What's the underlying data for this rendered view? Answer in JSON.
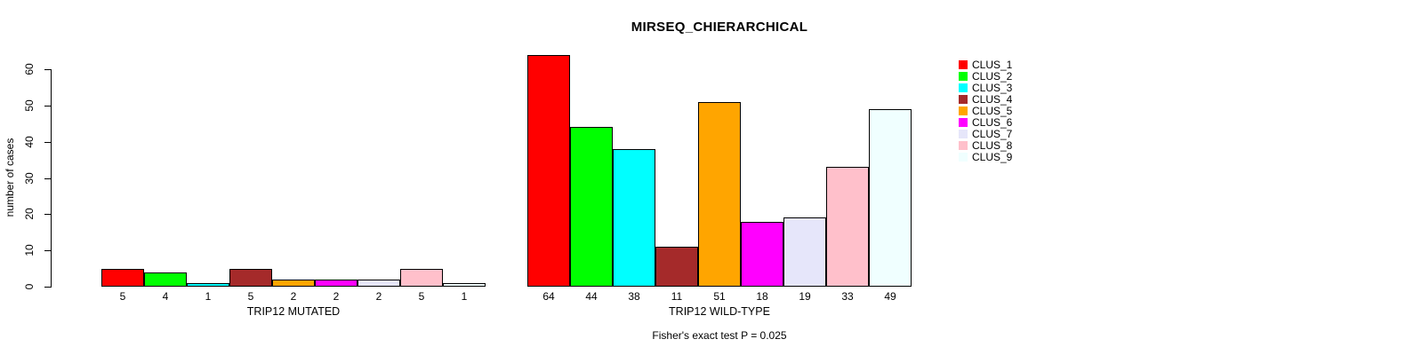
{
  "chart_data": {
    "type": "bar",
    "title": "MIRSEQ_CHIERARCHICAL",
    "ylabel": "number of cases",
    "ylim": [
      0,
      60
    ],
    "yticks": [
      0,
      10,
      20,
      30,
      40,
      50,
      60
    ],
    "grid": false,
    "legend_position": "right",
    "bar_border_color": "#000000",
    "footnote": "Fisher's exact test P = 0.025",
    "clusters": [
      {
        "label": "CLUS_1",
        "color": "#FF0000"
      },
      {
        "label": "CLUS_2",
        "color": "#00FF00"
      },
      {
        "label": "CLUS_3",
        "color": "#00FFFF"
      },
      {
        "label": "CLUS_4",
        "color": "#A52A2A"
      },
      {
        "label": "CLUS_5",
        "color": "#FFA500"
      },
      {
        "label": "CLUS_6",
        "color": "#FF00FF"
      },
      {
        "label": "CLUS_7",
        "color": "#E6E6FA"
      },
      {
        "label": "CLUS_8",
        "color": "#FFC0CB"
      },
      {
        "label": "CLUS_9",
        "color": "#F0FFFF"
      }
    ],
    "groups": [
      {
        "label": "TRIP12 MUTATED",
        "values": [
          5,
          4,
          1,
          5,
          2,
          2,
          2,
          5,
          1
        ]
      },
      {
        "label": "TRIP12 WILD-TYPE",
        "values": [
          64,
          44,
          38,
          11,
          51,
          18,
          19,
          33,
          49
        ]
      }
    ]
  }
}
